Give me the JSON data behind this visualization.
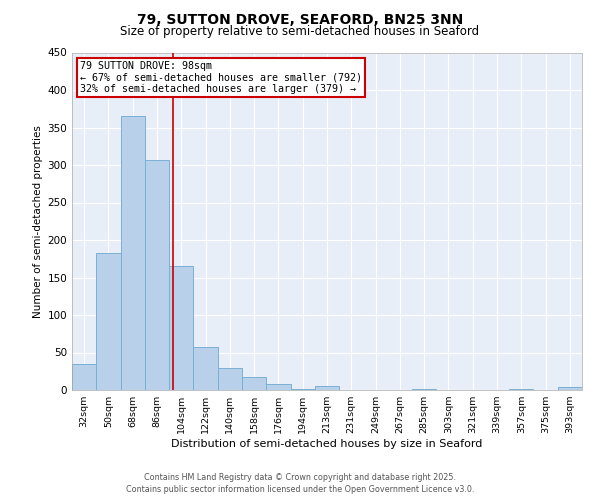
{
  "title": "79, SUTTON DROVE, SEAFORD, BN25 3NN",
  "subtitle": "Size of property relative to semi-detached houses in Seaford",
  "xlabel": "Distribution of semi-detached houses by size in Seaford",
  "ylabel": "Number of semi-detached properties",
  "bin_labels": [
    "32sqm",
    "50sqm",
    "68sqm",
    "86sqm",
    "104sqm",
    "122sqm",
    "140sqm",
    "158sqm",
    "176sqm",
    "194sqm",
    "213sqm",
    "231sqm",
    "249sqm",
    "267sqm",
    "285sqm",
    "303sqm",
    "321sqm",
    "339sqm",
    "357sqm",
    "375sqm",
    "393sqm"
  ],
  "counts": [
    35,
    183,
    365,
    307,
    165,
    58,
    30,
    17,
    8,
    2,
    6,
    0,
    0,
    0,
    1,
    0,
    0,
    0,
    2,
    0,
    4
  ],
  "bar_color": "#b8d0ea",
  "bar_edge_color": "#7aafd4",
  "property_label": "79 SUTTON DROVE: 98sqm",
  "smaller_pct": 67,
  "smaller_count": 792,
  "larger_pct": 32,
  "larger_count": 379,
  "vline_color": "#cc0000",
  "annotation_box_color": "#cc0000",
  "ylim": [
    0,
    450
  ],
  "yticks": [
    0,
    50,
    100,
    150,
    200,
    250,
    300,
    350,
    400,
    450
  ],
  "background_color": "#e8eef8",
  "grid_color": "#ffffff",
  "title_fontsize": 10,
  "subtitle_fontsize": 8.5,
  "footer_line1": "Contains HM Land Registry data © Crown copyright and database right 2025.",
  "footer_line2": "Contains public sector information licensed under the Open Government Licence v3.0.",
  "vline_x_index": 3.67
}
